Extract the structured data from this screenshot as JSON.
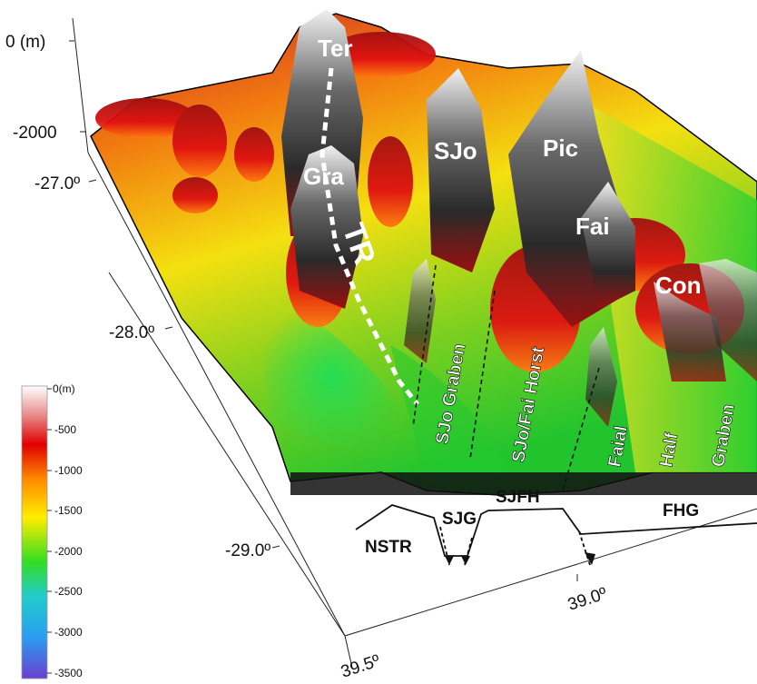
{
  "vertical_axis": {
    "top_label": "0 (m)",
    "tick_label": "-2000"
  },
  "latitude_labels": [
    "-27.0º",
    "-28.0º",
    "-29.0º"
  ],
  "longitude_labels": [
    "39.0º",
    "39.5º"
  ],
  "islands": {
    "ter": "Ter",
    "gra": "Gra",
    "sjo": "SJo",
    "pic": "Pic",
    "fai": "Fai",
    "con": "Con"
  },
  "ridge_label": "TR",
  "structures": {
    "sjo_graben": "SJo Graben",
    "sjo_fai_horst": "SJo/Fai Horst",
    "faial": "Faial",
    "half": "Half",
    "graben": "Graben"
  },
  "profile": {
    "nstr": "NSTR",
    "sjg": "SJG",
    "sjfh": "SJFH",
    "fhg": "FHG"
  },
  "colorbar": {
    "unit_label": "0(m)",
    "ticks": [
      "-500",
      "-1000",
      "-1500",
      "-2000",
      "-2500",
      "-3000",
      "-3500"
    ],
    "colors": [
      "#ffffff",
      "#e06a6a",
      "#e00000",
      "#ff8c00",
      "#ffee00",
      "#33dd22",
      "#22cccc",
      "#2a9df0",
      "#6a3fd0"
    ]
  }
}
